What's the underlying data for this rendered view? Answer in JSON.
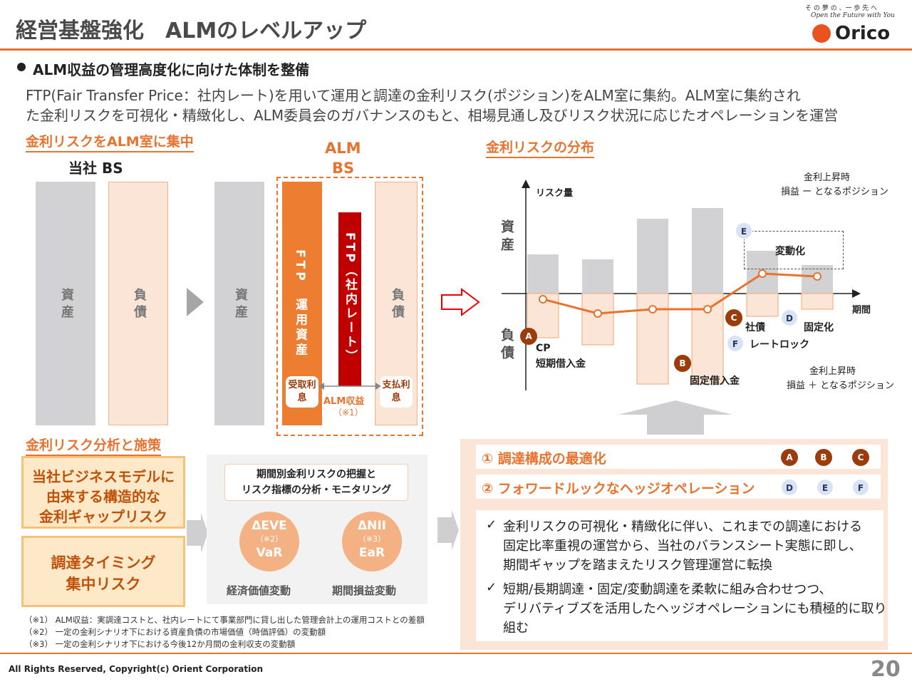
{
  "header": {
    "title": "経営基盤強化　ALMのレベルアップ",
    "tagline_ja": "そ の 夢 の 、一 歩 先 へ",
    "tagline_en": "Open the Future with You",
    "logo_text": "Orico"
  },
  "bullet": "ALM収益の管理高度化に向けた体制を整備",
  "intro": [
    "FTP(Fair Transfer Price：社内レート)を用いて運用と調達の金利リスク(ポジション)をALM室に集約。ALM室に集約され",
    "た金利リスクを可視化・精緻化し、ALM委員会のガバナンスのもと、相場見通し及びリスク状況に応じたオペレーションを運営"
  ],
  "left": {
    "heading": "金利リスクをALM室に集中",
    "bs_label": "当社 BS",
    "asset": "資産",
    "liability": "負債",
    "alm_bs": [
      "ALM",
      "BS"
    ],
    "ftp_asset": "FTP　運用資産",
    "ftp_rate": "FTP（社内レート）",
    "recv": "受取利息",
    "pay": "支払利息",
    "alm_income": "ALM収益",
    "note1": "（※1）"
  },
  "chart": {
    "heading": "金利リスクの分布",
    "yaxis": "リスク量",
    "xaxis": "期間",
    "asset": "資産",
    "liability": "負債",
    "up_minus": [
      "金利上昇時",
      "損益 ー となるポジション"
    ],
    "up_plus": [
      "金利上昇時",
      "損益 ＋ となるポジション"
    ],
    "variable": "変動化",
    "labels": {
      "cp": "CP",
      "short": "短期借入金",
      "fixed_loan": "固定借入金",
      "bond": "社債",
      "fixed": "固定化",
      "ratelock": "レートロック"
    },
    "badges": [
      "A",
      "B",
      "C",
      "D",
      "E",
      "F"
    ]
  },
  "chart_data": {
    "type": "bar",
    "categories": [
      "1",
      "2",
      "3",
      "4",
      "5",
      "6"
    ],
    "series": [
      {
        "name": "資産",
        "values": [
          55,
          48,
          105,
          120,
          60,
          40
        ]
      },
      {
        "name": "負債",
        "values": [
          -62,
          -72,
          -127,
          -127,
          -32,
          -22
        ]
      },
      {
        "name": "ポジション",
        "values": [
          -8,
          -28,
          -22,
          -22,
          28,
          24
        ]
      }
    ]
  },
  "bottom": {
    "heading": "金利リスク分析と施策",
    "box1": [
      "当社ビジネスモデルに",
      "由来する構造的な",
      "金利ギャップリスク"
    ],
    "box2": [
      "調達タイミング",
      "集中リスク"
    ],
    "mid_title": [
      "期間別金利リスクの把握と",
      "リスク指標の分析・モニタリング"
    ],
    "eve": "ΔEVE",
    "eve_note": "（※2）",
    "var": "VaR",
    "nii": "ΔNII",
    "nii_note": "（※3）",
    "ear": "EaR",
    "eve_cap": "経済価値変動",
    "nii_cap": "期間損益変動",
    "opt1": "① 調達構成の最適化",
    "opt2": "② フォワードルックなヘッジオペレーション",
    "check1": [
      "金利リスクの可視化・精緻化に伴い、これまでの調達における",
      "固定比率重視の運営から、当社のバランスシート実態に即し、",
      "期間ギャップを踏まえたリスク管理運営に転換"
    ],
    "check2": [
      "短期/長期調達・固定/変動調達を柔軟に組み合わせつつ、",
      "デリバティブズを活用したヘッジオペレーションにも積極的に取り",
      "組む"
    ]
  },
  "notes": [
    "（※1） ALM収益：実調達コストと、社内レートにて事業部門に貸し出した管理会計上の運用コストとの差額",
    "（※2） 一定の金利シナリオ下における資産負債の市場価値（時価評価）の変動額",
    "（※3） 一定の金利シナリオ下における今後12か月間の金利収支の変動額"
  ],
  "footer": {
    "copyright": "All Rights Reserved, Copyright(c) Orient Corporation",
    "page": "20"
  },
  "colors": {
    "accent": "#e8732f",
    "dark": "#9c3c0c",
    "red": "#c00000"
  }
}
